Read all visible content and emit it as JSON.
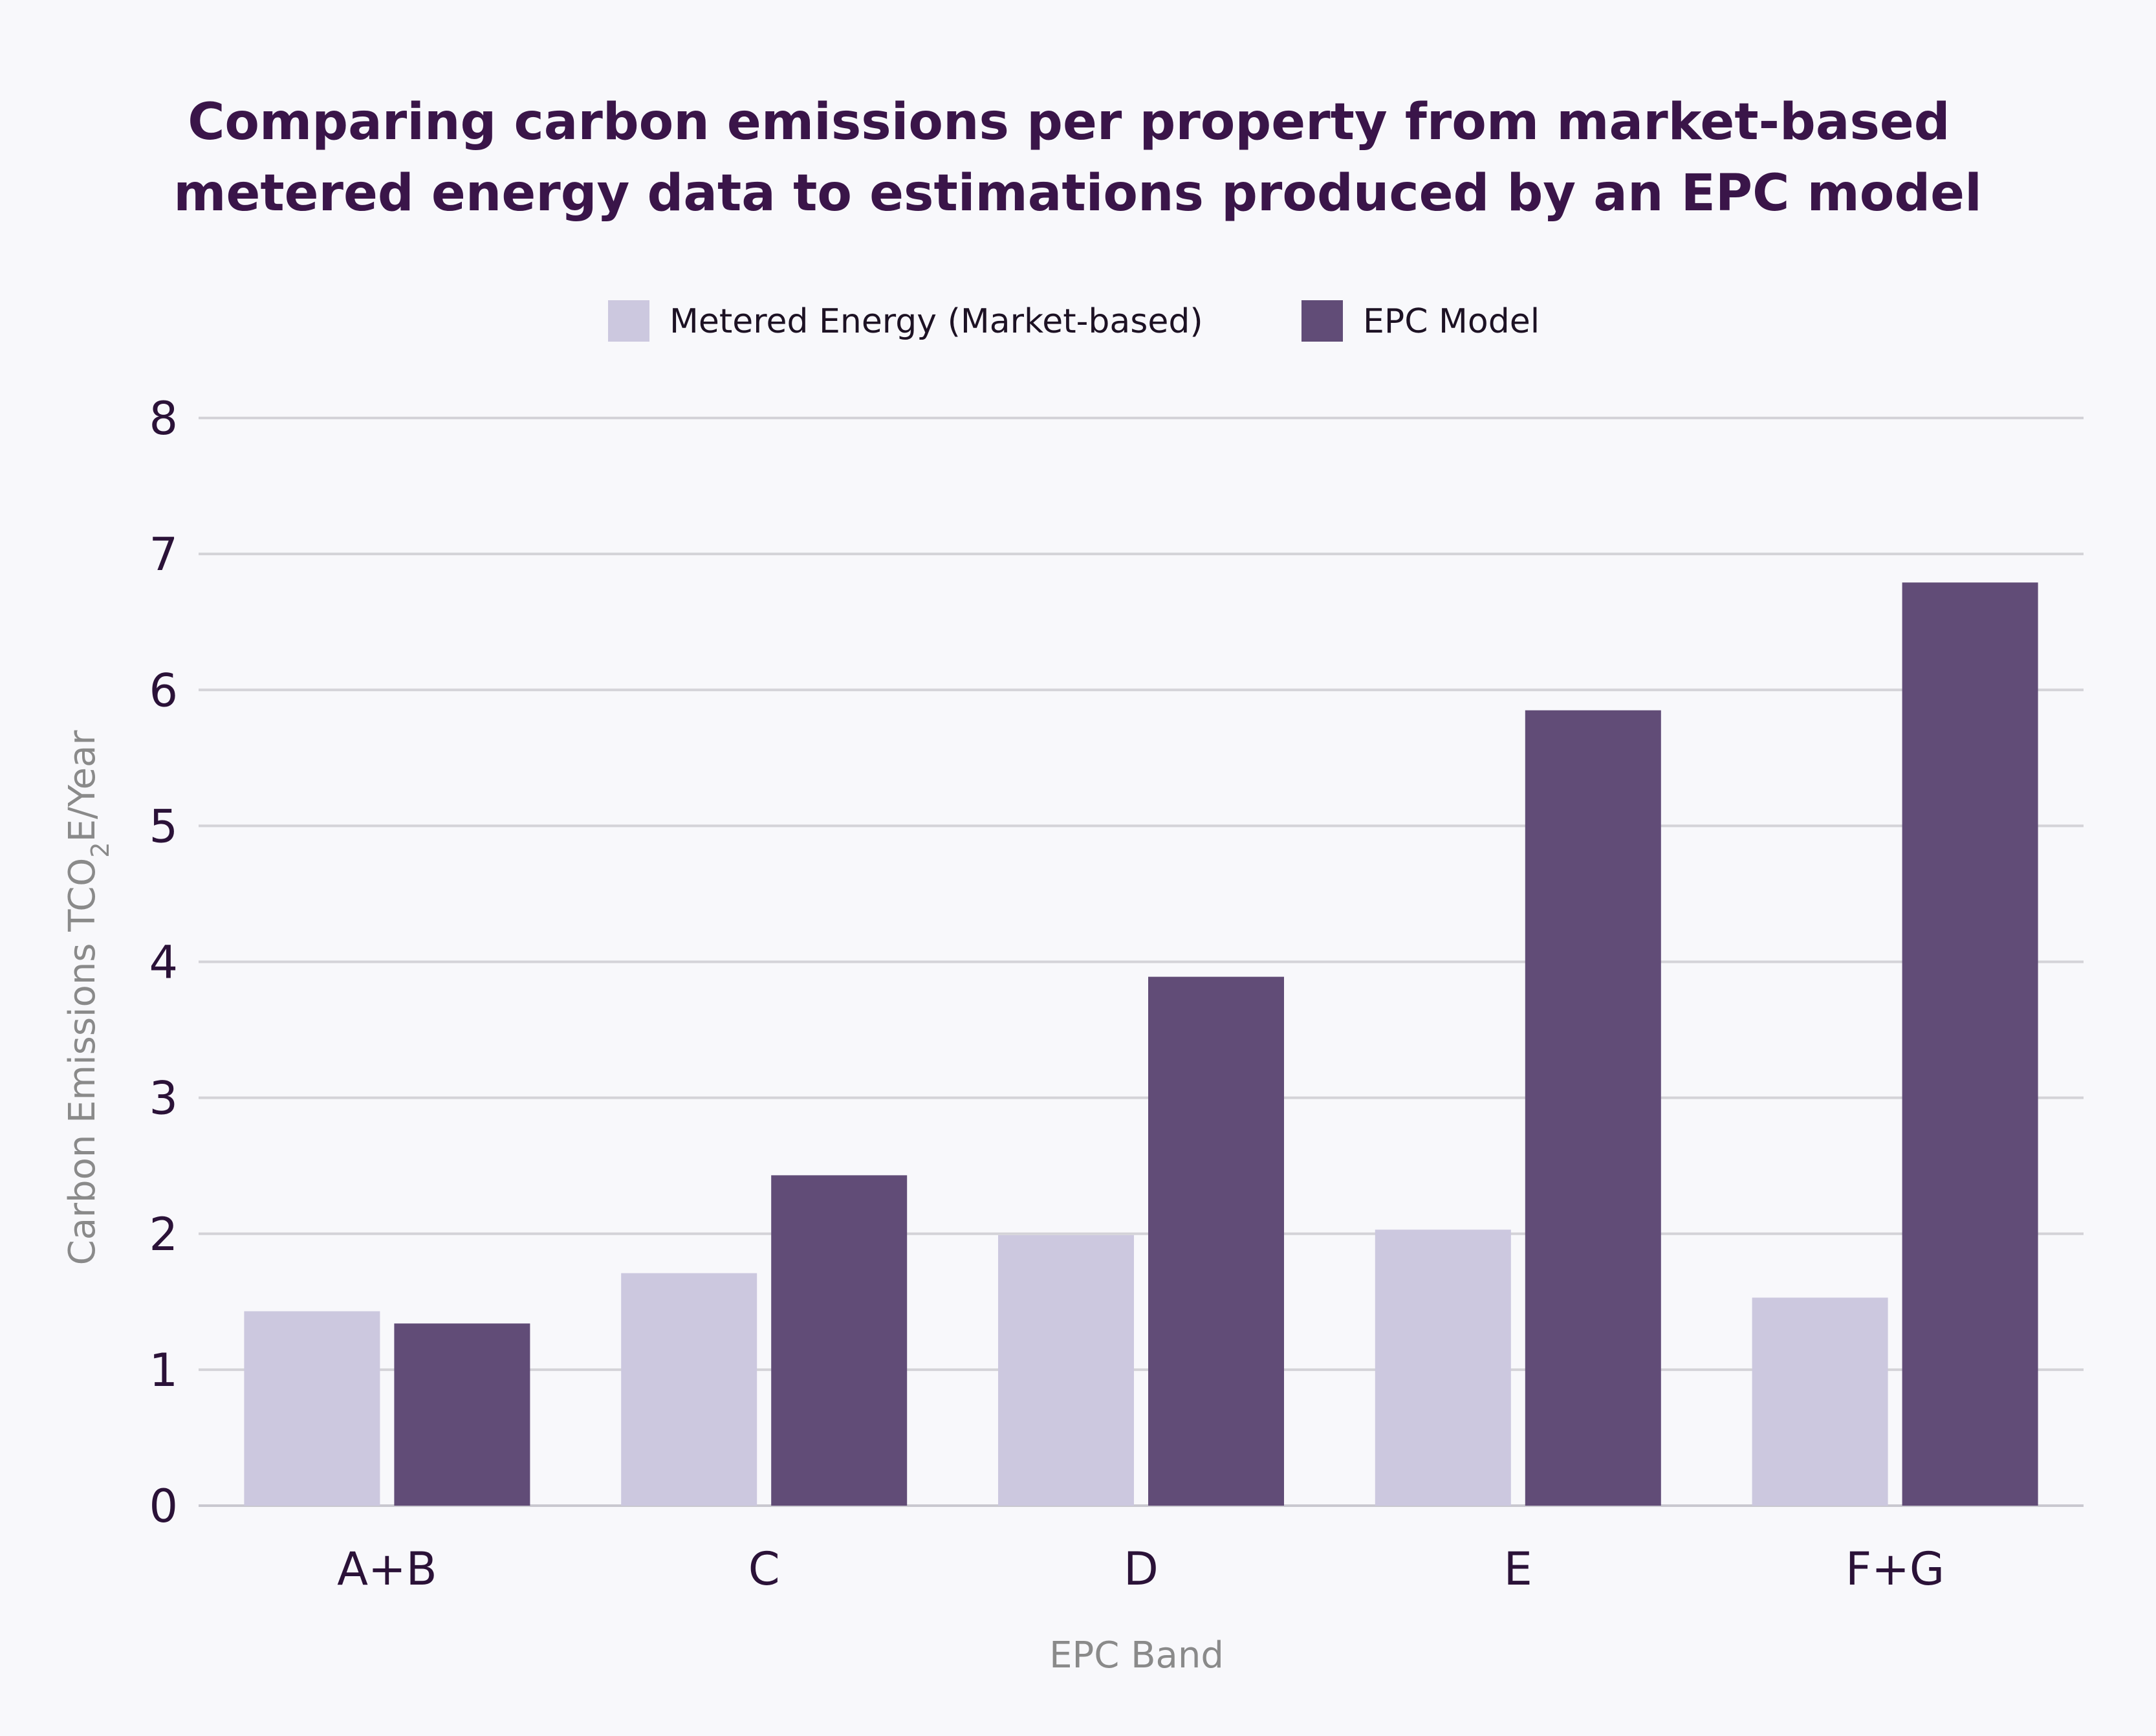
{
  "chart_data": {
    "type": "bar",
    "title_lines": [
      "Comparing carbon emissions per property from market-based",
      "metered energy data to estimations produced by an EPC model"
    ],
    "xlabel": "EPC Band",
    "ylabel": {
      "prefix": "Carbon Emissions TCO",
      "subscript": "2",
      "suffix": "E/Year"
    },
    "categories": [
      "A+B",
      "C",
      "D",
      "E",
      "F+G"
    ],
    "series": [
      {
        "name": "Metered Energy (Market-based)",
        "color": "#ccc8df",
        "values": [
          1.43,
          1.71,
          1.99,
          2.03,
          1.53
        ]
      },
      {
        "name": "EPC Model",
        "color": "#614c77",
        "values": [
          1.34,
          2.43,
          3.89,
          5.85,
          6.79
        ]
      }
    ],
    "ylim": [
      0,
      8
    ],
    "yticks": [
      0,
      1,
      2,
      3,
      4,
      5,
      6,
      7,
      8
    ],
    "grid": true,
    "legend_position": "top-center"
  }
}
